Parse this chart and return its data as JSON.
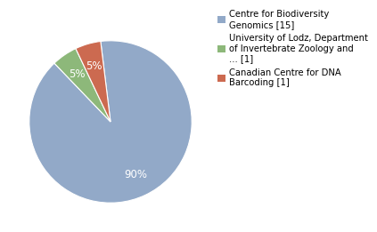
{
  "slices": [
    88,
    5,
    5
  ],
  "labels": [
    "Centre for Biodiversity\nGenomics [15]",
    "University of Lodz, Department\nof Invertebrate Zoology and\n... [1]",
    "Canadian Centre for DNA\nBarcoding [1]"
  ],
  "colors": [
    "#92a9c8",
    "#8db87a",
    "#cc6a50"
  ],
  "background_color": "#ffffff",
  "text_color": "#ffffff",
  "legend_fontsize": 7.2,
  "autopct_fontsize": 8.5,
  "startangle": 97
}
